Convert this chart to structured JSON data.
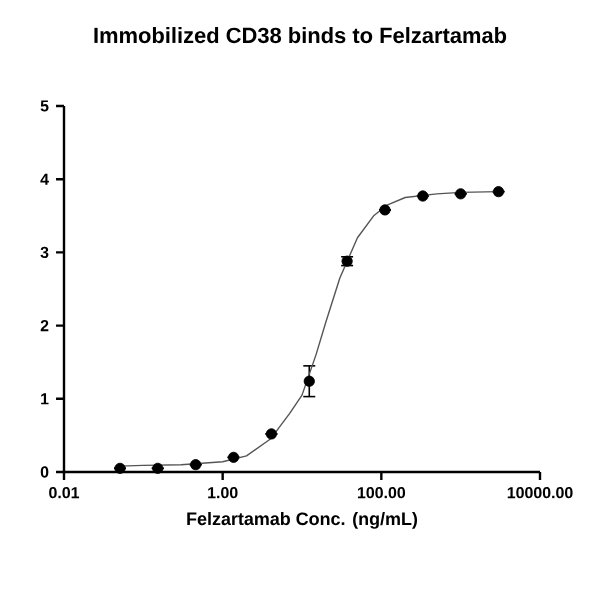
{
  "chart_data": {
    "type": "scatter",
    "title": "Immobilized CD38 binds to Felzartamab",
    "xlabel": "Felzartamab Conc. (ng/mL)",
    "log": "x",
    "xlim": [
      0.01,
      10000
    ],
    "xticks": [
      {
        "value": 0.01,
        "label": "0.01"
      },
      {
        "value": 1,
        "label": "1.00"
      },
      {
        "value": 100,
        "label": "100.00"
      },
      {
        "value": 10000,
        "label": "10000.00"
      }
    ],
    "ylim": [
      0,
      5
    ],
    "yticks": [
      0,
      1,
      2,
      3,
      4,
      5
    ],
    "series": [
      {
        "color": "#000000",
        "marker": "circle",
        "x": [
          0.0508,
          0.152,
          0.457,
          1.372,
          4.115,
          12.35,
          37.04,
          111.1,
          333.3,
          1000,
          3000
        ],
        "values": [
          0.05,
          0.05,
          0.1,
          0.2,
          0.52,
          1.24,
          2.88,
          3.58,
          3.77,
          3.8,
          3.83
        ],
        "errors": [
          null,
          null,
          null,
          null,
          null,
          0.21,
          0.06,
          null,
          null,
          null,
          null
        ]
      },
      {
        "type": "line",
        "color": "#555555",
        "marker": "none",
        "x": [
          0.05,
          0.1,
          0.3,
          1,
          2,
          4,
          7,
          10,
          15,
          20,
          30,
          50,
          80,
          120,
          200,
          500,
          1000,
          3000
        ],
        "values": [
          0.08,
          0.09,
          0.1,
          0.14,
          0.22,
          0.45,
          0.8,
          1.05,
          1.6,
          2.05,
          2.65,
          3.2,
          3.5,
          3.65,
          3.75,
          3.8,
          3.82,
          3.83
        ]
      }
    ]
  }
}
